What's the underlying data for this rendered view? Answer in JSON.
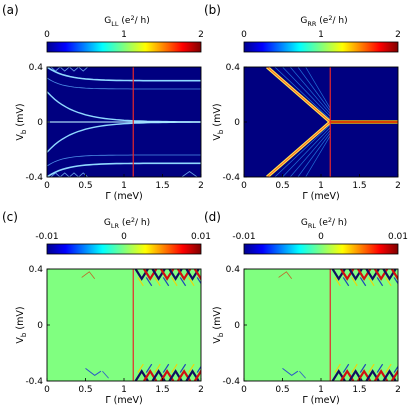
{
  "chart_data": [
    {
      "type": "heatmap",
      "panel": "(a)",
      "colorbar": {
        "label_main": "G",
        "label_sub": "LL",
        "label_unit": "(e",
        "label_sup": "2",
        "label_tail": "/ h)",
        "ticks": [
          "0",
          "1",
          "2"
        ],
        "range": [
          0,
          2
        ],
        "colormap": "jet"
      },
      "xlabel": "Γ (meV)",
      "ylabel_main": "V",
      "ylabel_sub": "b",
      "ylabel_unit": "(mV)",
      "xticks": [
        "0",
        "0.5",
        "1",
        "1.5",
        "2"
      ],
      "yticks": [
        "-0.4",
        "0",
        "0.4"
      ],
      "xlim": [
        0,
        2
      ],
      "ylim": [
        -0.4,
        0.4
      ],
      "marker_line_x": 1.12,
      "background_value": 0.0,
      "features": "conductance peaks (near-zero-mode branches) along horizontal lines that converge from large |Vb| at Γ≈0 toward Vb≈±0.3 and Vb≈0 for Γ > 0.6",
      "colors": {
        "marker_line": "#e8262a",
        "frame": "#000000"
      }
    },
    {
      "type": "heatmap",
      "panel": "(b)",
      "colorbar": {
        "label_main": "G",
        "label_sub": "RR",
        "label_unit": "(e",
        "label_sup": "2",
        "label_tail": "/ h)",
        "ticks": [
          "0",
          "1",
          "2"
        ],
        "range": [
          0,
          2
        ],
        "colormap": "jet"
      },
      "xlabel": "Γ (meV)",
      "ylabel_main": "V",
      "ylabel_sub": "b",
      "ylabel_unit": "(mV)",
      "xticks": [
        "0",
        "0.5",
        "1",
        "1.5",
        "2"
      ],
      "yticks": [
        "-0.4",
        "0",
        "0.4"
      ],
      "xlim": [
        0,
        2
      ],
      "ylim": [
        -0.4,
        0.4
      ],
      "marker_line_x": 1.12,
      "background_value": 0.0,
      "features": "bright V-shaped gap closing from Vb=±0.4 at Γ≈0.3 to Vb=0 at Γ≈1.12, followed by a strong zero-bias conductance peak (≈2 e²/h) for Γ > 1.12",
      "colors": {
        "marker_line": "#e8262a",
        "frame": "#000000"
      }
    },
    {
      "type": "heatmap",
      "panel": "(c)",
      "colorbar": {
        "label_main": "G",
        "label_sub": "LR",
        "label_unit": "(e",
        "label_sup": "2",
        "label_tail": "/ h)",
        "ticks": [
          "-0.01",
          "0",
          "0.01"
        ],
        "range": [
          -0.01,
          0.01
        ],
        "colormap": "jet"
      },
      "xlabel": "Γ (meV)",
      "ylabel_main": "V",
      "ylabel_sub": "b",
      "ylabel_unit": "(mV)",
      "xticks": [
        "0",
        "0.5",
        "1",
        "1.5",
        "2"
      ],
      "yticks": [
        "-0.4",
        "0",
        "0.4"
      ],
      "xlim": [
        0,
        2
      ],
      "ylim": [
        -0.4,
        0.4
      ],
      "marker_line_x": 1.12,
      "background_value": 0.0,
      "features": "mostly zero (green); strong positive/negative oscillating nonlocal signals near |Vb|≈0.3–0.4 for Γ > 1.12, weak features near |Vb|≈0.35 for Γ < 1.12",
      "colors": {
        "marker_line": "#e8262a",
        "frame": "#000000"
      }
    },
    {
      "type": "heatmap",
      "panel": "(d)",
      "colorbar": {
        "label_main": "G",
        "label_sub": "RL",
        "label_unit": "(e",
        "label_sup": "2",
        "label_tail": "/ h)",
        "ticks": [
          "-0.01",
          "0",
          "0.01"
        ],
        "range": [
          -0.01,
          0.01
        ],
        "colormap": "jet"
      },
      "xlabel": "Γ (meV)",
      "ylabel_main": "V",
      "ylabel_sub": "b",
      "ylabel_unit": "(mV)",
      "xticks": [
        "0",
        "0.5",
        "1",
        "1.5",
        "2"
      ],
      "yticks": [
        "-0.4",
        "0",
        "0.4"
      ],
      "xlim": [
        0,
        2
      ],
      "ylim": [
        -0.4,
        0.4
      ],
      "marker_line_x": 1.12,
      "background_value": 0.0,
      "features": "mostly zero (green); strong positive/negative oscillating nonlocal signals near |Vb|≈0.3–0.4 for Γ > 1.12, weak features near |Vb|≈0.35 for Γ < 1.12",
      "colors": {
        "marker_line": "#e8262a",
        "frame": "#000000"
      }
    }
  ]
}
